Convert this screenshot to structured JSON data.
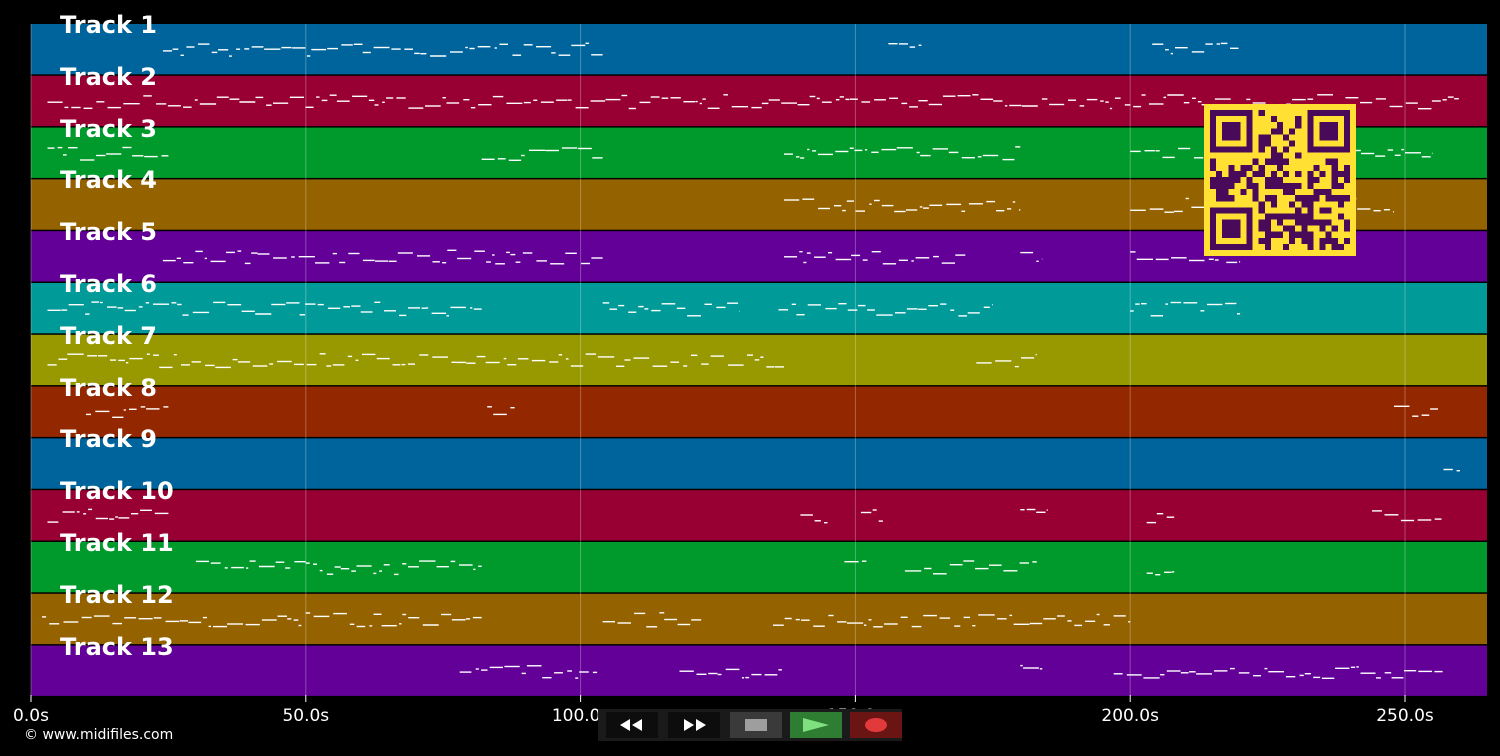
{
  "tracks": [
    {
      "name": "Track 1",
      "color": "#00649c"
    },
    {
      "name": "Track 2",
      "color": "#980034"
    },
    {
      "name": "Track 3",
      "color": "#009a2c"
    },
    {
      "name": "Track 4",
      "color": "#956200"
    },
    {
      "name": "Track 5",
      "color": "#630098"
    },
    {
      "name": "Track 6",
      "color": "#009a98"
    },
    {
      "name": "Track 7",
      "color": "#989800"
    },
    {
      "name": "Track 8",
      "color": "#932800"
    },
    {
      "name": "Track 9",
      "color": "#00649c"
    },
    {
      "name": "Track 10",
      "color": "#980034"
    },
    {
      "name": "Track 11",
      "color": "#009a2c"
    },
    {
      "name": "Track 12",
      "color": "#956200"
    },
    {
      "name": "Track 13",
      "color": "#630098"
    }
  ],
  "time_axis": {
    "ticks": [
      "0.0s",
      "50.0s",
      "100.0s",
      "150.0s",
      "200.0s",
      "250.0s"
    ],
    "tick_values": [
      0,
      50,
      100,
      150,
      200,
      250
    ],
    "max_seconds": 265
  },
  "copyright": "© www.midifiles.com",
  "transport": {
    "rewind_icon": "rewind-icon",
    "fast_forward_icon": "fast-forward-icon",
    "stop_icon": "stop-icon",
    "play_icon": "play-icon",
    "record_icon": "record-icon"
  },
  "overlay": {
    "qr_color": "#ffe033",
    "qr_dark": "#4a0a5a"
  }
}
